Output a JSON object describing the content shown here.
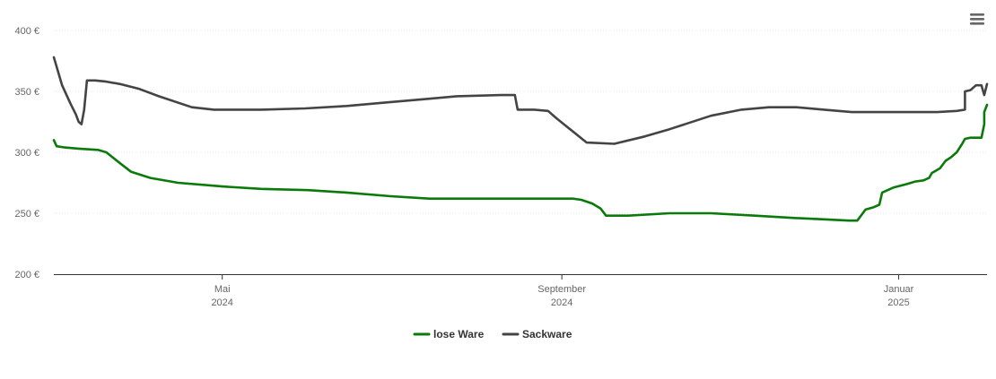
{
  "chart_data": {
    "type": "line",
    "y_ticks": [
      "200 €",
      "250 €",
      "300 €",
      "350 €",
      "400 €"
    ],
    "y_tick_values": [
      200,
      250,
      300,
      350,
      400
    ],
    "ylim": [
      200,
      400
    ],
    "x_range": [
      "2024-03-01",
      "2025-02-02"
    ],
    "x_ticks": [
      {
        "date": "2024-05-01",
        "line1": "Mai",
        "line2": "2024"
      },
      {
        "date": "2024-09-01",
        "line1": "September",
        "line2": "2024"
      },
      {
        "date": "2025-01-01",
        "line1": "Januar",
        "line2": "2025"
      }
    ],
    "grid": "horizontal",
    "legend_position": "bottom-center",
    "series": [
      {
        "name": "lose Ware",
        "color": "#0a7a0a",
        "points": [
          [
            "2024-03-01",
            310
          ],
          [
            "2024-03-02",
            305
          ],
          [
            "2024-03-05",
            304
          ],
          [
            "2024-03-10",
            303
          ],
          [
            "2024-03-17",
            302
          ],
          [
            "2024-03-20",
            300
          ],
          [
            "2024-03-25",
            291
          ],
          [
            "2024-03-29",
            284
          ],
          [
            "2024-04-05",
            279
          ],
          [
            "2024-04-15",
            275
          ],
          [
            "2024-05-01",
            272
          ],
          [
            "2024-05-15",
            270
          ],
          [
            "2024-06-01",
            269
          ],
          [
            "2024-06-15",
            267
          ],
          [
            "2024-07-01",
            264
          ],
          [
            "2024-07-15",
            262
          ],
          [
            "2024-08-01",
            262
          ],
          [
            "2024-08-15",
            262
          ],
          [
            "2024-09-01",
            262
          ],
          [
            "2024-09-05",
            262
          ],
          [
            "2024-09-08",
            261
          ],
          [
            "2024-09-12",
            258
          ],
          [
            "2024-09-15",
            254
          ],
          [
            "2024-09-17",
            248
          ],
          [
            "2024-09-25",
            248
          ],
          [
            "2024-10-10",
            250
          ],
          [
            "2024-10-25",
            250
          ],
          [
            "2024-11-10",
            248
          ],
          [
            "2024-11-25",
            246
          ],
          [
            "2024-12-05",
            245
          ],
          [
            "2024-12-14",
            244
          ],
          [
            "2024-12-17",
            244
          ],
          [
            "2024-12-20",
            253
          ],
          [
            "2024-12-23",
            255
          ],
          [
            "2024-12-25",
            257
          ],
          [
            "2024-12-26",
            267
          ],
          [
            "2024-12-30",
            271
          ],
          [
            "2025-01-04",
            274
          ],
          [
            "2025-01-07",
            276
          ],
          [
            "2025-01-10",
            277
          ],
          [
            "2025-01-12",
            279
          ],
          [
            "2025-01-13",
            283
          ],
          [
            "2025-01-16",
            287
          ],
          [
            "2025-01-18",
            293
          ],
          [
            "2025-01-20",
            296
          ],
          [
            "2025-01-22",
            300
          ],
          [
            "2025-01-24",
            307
          ],
          [
            "2025-01-25",
            311
          ],
          [
            "2025-01-27",
            312
          ],
          [
            "2025-01-31",
            312
          ],
          [
            "2025-02-01",
            323
          ],
          [
            "2025-02-01",
            333
          ],
          [
            "2025-02-02",
            339
          ]
        ]
      },
      {
        "name": "Sackware",
        "color": "#444444",
        "points": [
          [
            "2024-03-01",
            378
          ],
          [
            "2024-03-04",
            355
          ],
          [
            "2024-03-07",
            340
          ],
          [
            "2024-03-09",
            331
          ],
          [
            "2024-03-10",
            325
          ],
          [
            "2024-03-11",
            323
          ],
          [
            "2024-03-12",
            335
          ],
          [
            "2024-03-13",
            359
          ],
          [
            "2024-03-16",
            359
          ],
          [
            "2024-03-20",
            358
          ],
          [
            "2024-03-25",
            356
          ],
          [
            "2024-04-01",
            352
          ],
          [
            "2024-04-08",
            346
          ],
          [
            "2024-04-20",
            337
          ],
          [
            "2024-04-28",
            335
          ],
          [
            "2024-05-15",
            335
          ],
          [
            "2024-05-31",
            336
          ],
          [
            "2024-06-15",
            338
          ],
          [
            "2024-06-30",
            341
          ],
          [
            "2024-07-15",
            344
          ],
          [
            "2024-07-25",
            346
          ],
          [
            "2024-08-10",
            347
          ],
          [
            "2024-08-15",
            347
          ],
          [
            "2024-08-16",
            335
          ],
          [
            "2024-08-22",
            335
          ],
          [
            "2024-08-27",
            334
          ],
          [
            "2024-08-30",
            328
          ],
          [
            "2024-09-10",
            308
          ],
          [
            "2024-09-20",
            307
          ],
          [
            "2024-10-01",
            313
          ],
          [
            "2024-10-10",
            319
          ],
          [
            "2024-10-25",
            330
          ],
          [
            "2024-11-05",
            335
          ],
          [
            "2024-11-15",
            337
          ],
          [
            "2024-11-25",
            337
          ],
          [
            "2024-12-05",
            335
          ],
          [
            "2024-12-15",
            333
          ],
          [
            "2025-01-01",
            333
          ],
          [
            "2025-01-15",
            333
          ],
          [
            "2025-01-22",
            334
          ],
          [
            "2025-01-25",
            335
          ],
          [
            "2025-01-25",
            350
          ],
          [
            "2025-01-27",
            351
          ],
          [
            "2025-01-29",
            355
          ],
          [
            "2025-01-31",
            355
          ],
          [
            "2025-02-01",
            347
          ],
          [
            "2025-02-02",
            356
          ]
        ]
      }
    ]
  }
}
